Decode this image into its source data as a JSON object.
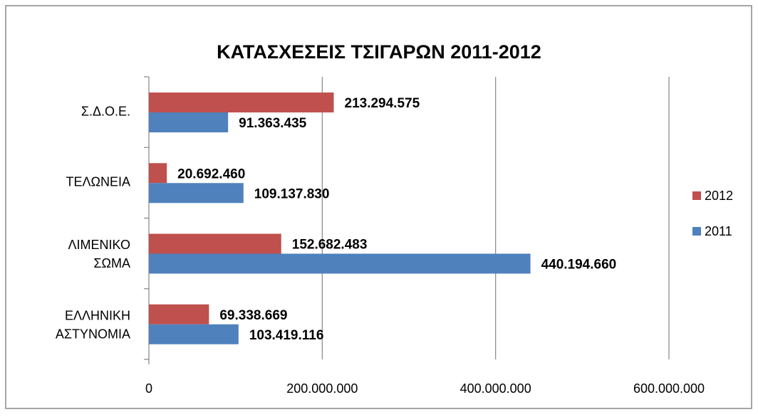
{
  "chart_data": {
    "type": "bar",
    "orientation": "horizontal",
    "title": "ΚΑΤΑΣΧΕΣΕΙΣ ΤΣΙΓΑΡΩΝ 2011-2012",
    "categories": [
      "Σ.Δ.Ο.Ε.",
      "ΤΕΛΩΝΕΙΑ",
      "ΛΙΜΕΝΙΚΟ ΣΩΜΑ",
      "ΕΛΛΗΝΙΚΗ ΑΣΤΥΝΟΜΙΑ"
    ],
    "series": [
      {
        "name": "2012",
        "color": "#c0504d",
        "values": [
          213294575,
          20692460,
          152682483,
          69338669
        ],
        "value_labels": [
          "213.294.575",
          "20.692.460",
          "152.682.483",
          "69.338.669"
        ]
      },
      {
        "name": "2011",
        "color": "#4f81bd",
        "values": [
          91363435,
          109137830,
          440194660,
          103419116
        ],
        "value_labels": [
          "91.363.435",
          "109.137.830",
          "440.194.660",
          "103.419.116"
        ]
      }
    ],
    "xlim": [
      0,
      600000000
    ],
    "xticks": [
      0,
      {
        "value": 200000000,
        "label": "200.000.000"
      },
      {
        "value": 400000000,
        "label": "400.000.000"
      },
      {
        "value": 600000000,
        "label": "600.000.000"
      }
    ],
    "grid": true,
    "legend": "right"
  }
}
